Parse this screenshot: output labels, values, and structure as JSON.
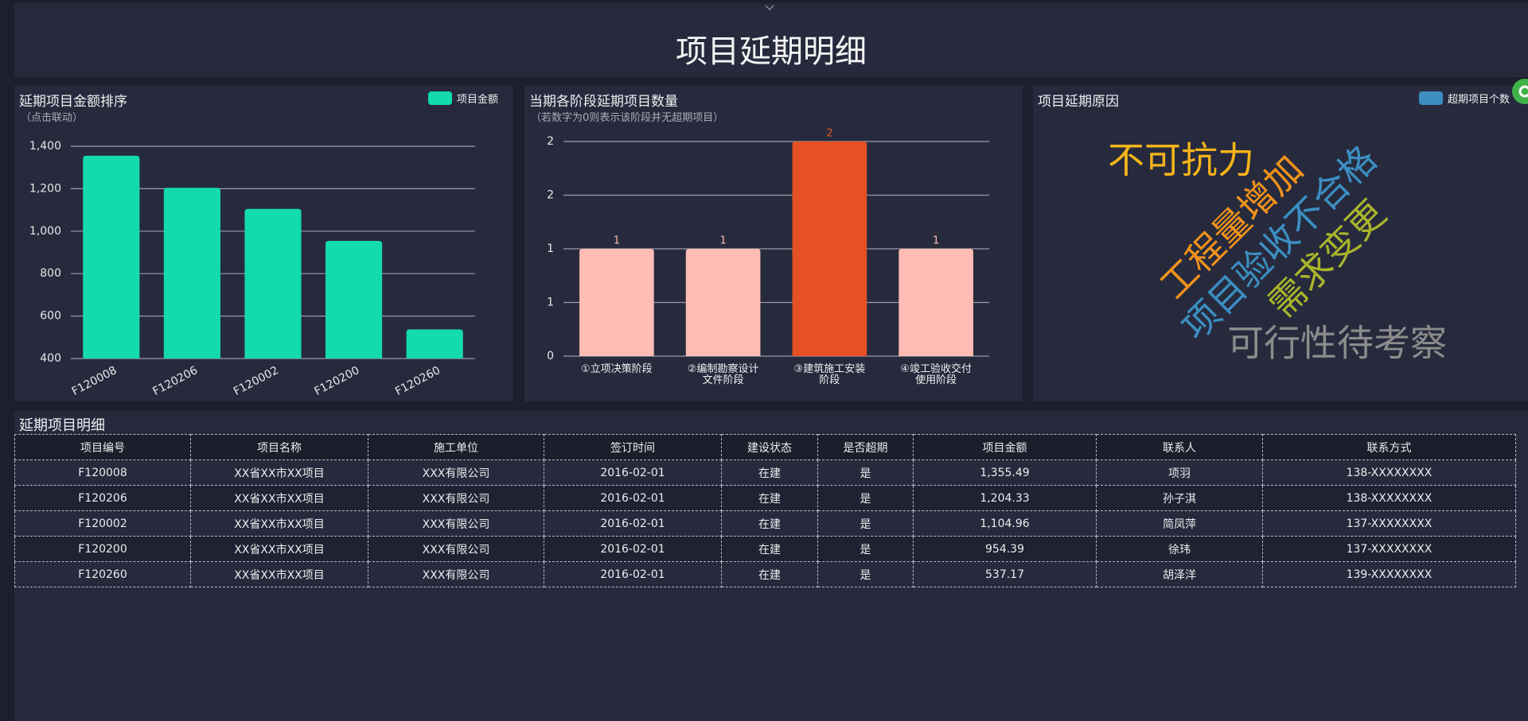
{
  "header": {
    "title": "项目延期明细"
  },
  "chart_data": [
    {
      "type": "bar",
      "title": "延期项目金额排序",
      "subtitle": "（点击联动）",
      "legend": "项目金额",
      "color": "#13dbad",
      "categories": [
        "F120008",
        "F120206",
        "F120002",
        "F120200",
        "F120260"
      ],
      "values": [
        1355.49,
        1204.33,
        1104.96,
        954.39,
        537.17
      ],
      "ylim": [
        400,
        1400
      ],
      "yticks": [
        {
          "value": 400,
          "label": "400"
        },
        {
          "value": 600,
          "label": "600"
        },
        {
          "value": 800,
          "label": "800"
        },
        {
          "value": 1000,
          "label": "1,000"
        },
        {
          "value": 1200,
          "label": "1,200"
        },
        {
          "value": 1400,
          "label": "1,400"
        }
      ],
      "grid": true
    },
    {
      "type": "bar",
      "title": "当期各阶段延期项目数量",
      "subtitle": "（若数字为0则表示该阶段并无超期项目）",
      "categories": [
        "①立项决策阶段",
        "②编制勘察设计文件阶段",
        "③建筑施工安装阶段",
        "④竣工验收交付使用阶段"
      ],
      "values": [
        1,
        1,
        2,
        1
      ],
      "colors": [
        "#fdbcb4",
        "#fdbcb4",
        "#e55025",
        "#fdbcb4"
      ],
      "ylim": [
        0,
        2
      ],
      "yticks": [
        0,
        {
          "value": 0.5,
          "label": "1"
        },
        1,
        {
          "value": 1.5,
          "label": "2"
        },
        2
      ],
      "grid": true
    },
    {
      "type": "wordcloud",
      "title": "项目延期原因",
      "legend": "超期项目个数",
      "legend_color": "#3c8fc0",
      "words": [
        "不可抗力",
        "工程量增加",
        "项目验收不合格",
        "需求变更",
        "可行性待考察"
      ],
      "colors": [
        "#f5b41a",
        "#f0921b",
        "#3b8fc2",
        "#a9b52a",
        "#8c8c8c"
      ]
    }
  ],
  "table": {
    "title": "延期项目明细",
    "columns": [
      "项目编号",
      "项目名称",
      "施工单位",
      "签订时间",
      "建设状态",
      "是否超期",
      "项目金额",
      "联系人",
      "联系方式"
    ],
    "rows": [
      [
        "F120008",
        "XX省XX市XX项目",
        "XXX有限公司",
        "2016-02-01",
        "在建",
        "是",
        "1,355.49",
        "项羽",
        "138-XXXXXXXX"
      ],
      [
        "F120206",
        "XX省XX市XX项目",
        "XXX有限公司",
        "2016-02-01",
        "在建",
        "是",
        "1,204.33",
        "孙子淇",
        "138-XXXXXXXX"
      ],
      [
        "F120002",
        "XX省XX市XX项目",
        "XXX有限公司",
        "2016-02-01",
        "在建",
        "是",
        "1,104.96",
        "简凤萍",
        "137-XXXXXXXX"
      ],
      [
        "F120200",
        "XX省XX市XX项目",
        "XXX有限公司",
        "2016-02-01",
        "在建",
        "是",
        "954.39",
        "徐玮",
        "137-XXXXXXXX"
      ],
      [
        "F120260",
        "XX省XX市XX项目",
        "XXX有限公司",
        "2016-02-01",
        "在建",
        "是",
        "537.17",
        "胡泽洋",
        "139-XXXXXXXX"
      ]
    ]
  }
}
